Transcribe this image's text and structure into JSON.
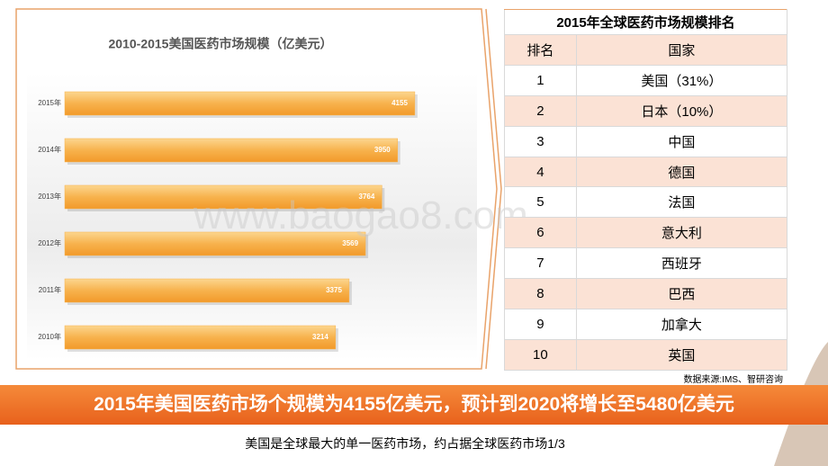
{
  "chart_data": {
    "type": "hbar",
    "title": "2010-2015美国医药市场规模（亿美元）",
    "categories": [
      "2015年",
      "2014年",
      "2013年",
      "2012年",
      "2011年",
      "2010年"
    ],
    "values": [
      4155,
      3950,
      3764,
      3569,
      3375,
      3214
    ],
    "color": "#f7b24d",
    "xlim": [
      0,
      5000
    ]
  },
  "table": {
    "title": "2015年全球医药市场规模排名",
    "header": [
      "排名",
      "国家"
    ],
    "rows": [
      [
        "1",
        "美国（31%）"
      ],
      [
        "2",
        "日本（10%）"
      ],
      [
        "3",
        "中国"
      ],
      [
        "4",
        "德国"
      ],
      [
        "5",
        "法国"
      ],
      [
        "6",
        "意大利"
      ],
      [
        "7",
        "西班牙"
      ],
      [
        "8",
        "巴西"
      ],
      [
        "9",
        "加拿大"
      ],
      [
        "10",
        "英国"
      ]
    ]
  },
  "source": "数据来源:IMS、智研咨询",
  "watermark": "www.baogao8.com",
  "banner": "2015年美国医药市场个规模为4155亿美元，预计到2020将增长至5480亿美元",
  "caption": "美国是全球最大的单一医药市场，约占据全球医药市场1/3"
}
